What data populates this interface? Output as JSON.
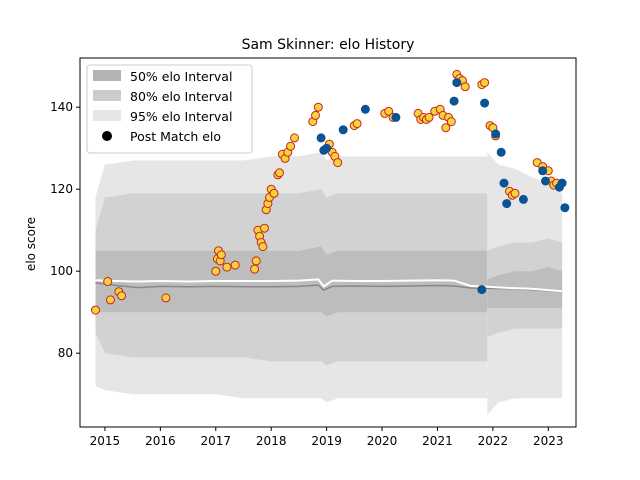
{
  "chart_data": {
    "type": "line",
    "title": "Sam Skinner: elo History",
    "xlabel": "",
    "ylabel": "elo score",
    "xlim": [
      2014.55,
      2023.5
    ],
    "ylim": [
      62,
      152
    ],
    "x_ticks": [
      2015,
      2016,
      2017,
      2018,
      2019,
      2020,
      2021,
      2022,
      2023
    ],
    "y_ticks": [
      80,
      100,
      120,
      140
    ],
    "grid": false,
    "legend_position": "top-left",
    "legend": [
      {
        "label": "50% elo Interval",
        "kind": "band",
        "color": "#b3b3b3"
      },
      {
        "label": "80% elo Interval",
        "kind": "band",
        "color": "#cccccc"
      },
      {
        "label": "95% elo Interval",
        "kind": "band",
        "color": "#e6e6e6"
      },
      {
        "label": "Post Match elo",
        "kind": "marker",
        "color": "#000000"
      }
    ],
    "colors": {
      "band50": "#bdbdbd",
      "band80": "#d2d2d2",
      "band95": "#e6e6e6",
      "median_line": "#888888",
      "mean_line": "#ffffff",
      "marker_fill_real": "#f5d33a",
      "marker_edge_real": "#cc2222",
      "marker_fill_sim": "#0b5394"
    },
    "bands": {
      "x": [
        2014.83,
        2015.0,
        2015.5,
        2016.0,
        2016.5,
        2017.0,
        2017.5,
        2018.0,
        2018.5,
        2018.9,
        2019.0,
        2019.2,
        2019.6,
        2020.0,
        2020.5,
        2021.0,
        2021.3,
        2021.6,
        2021.9
      ],
      "q50_low": [
        90,
        90,
        90,
        90,
        90,
        90,
        90,
        90,
        90,
        90,
        89,
        90,
        90,
        90,
        90,
        90,
        90,
        90,
        90
      ],
      "q50_high": [
        105,
        105,
        105,
        105,
        105,
        105,
        105,
        105,
        105,
        106,
        104,
        105,
        105,
        105,
        105,
        105,
        105,
        105,
        105
      ],
      "q80_low": [
        85,
        80,
        79,
        79,
        79,
        79,
        79,
        78,
        78,
        78,
        77,
        78,
        78,
        78,
        78,
        78,
        78,
        78,
        78
      ],
      "q80_high": [
        110,
        118,
        119,
        119,
        119,
        119,
        119,
        119,
        119,
        120,
        118,
        119,
        119,
        119,
        119,
        119,
        119,
        119,
        119
      ],
      "q95_low": [
        72,
        71,
        70,
        70,
        70,
        70,
        69,
        69,
        69,
        69,
        68,
        69,
        69,
        69,
        69,
        69,
        69,
        69,
        69
      ],
      "q95_high": [
        118,
        126,
        127,
        127,
        127,
        127,
        127,
        128,
        128,
        129,
        127,
        128,
        128,
        128,
        128,
        128,
        128,
        128,
        128
      ]
    },
    "future_bands": {
      "x": [
        2021.9,
        2022.1,
        2022.4,
        2022.7,
        2023.0,
        2023.25
      ],
      "q50_low": [
        91,
        91,
        91,
        91,
        91,
        91
      ],
      "q50_high": [
        98,
        99,
        100,
        100,
        101,
        100
      ],
      "q80_low": [
        84,
        85,
        86,
        86,
        86,
        86
      ],
      "q80_high": [
        105,
        106,
        107,
        107,
        108,
        107
      ],
      "q95_low": [
        65,
        68,
        69,
        69,
        69,
        69
      ],
      "q95_high": [
        129,
        126,
        125,
        123,
        121,
        119
      ]
    },
    "series": [
      {
        "role": "median",
        "x": [
          2014.83,
          2015.2,
          2015.6,
          2016.0,
          2016.5,
          2017.0,
          2017.5,
          2018.0,
          2018.5,
          2018.85,
          2018.95,
          2019.1,
          2019.5,
          2020.0,
          2020.5,
          2021.0,
          2021.3,
          2021.6,
          2021.9,
          2022.3,
          2022.7,
          2023.0,
          2023.25
        ],
        "values": [
          97.2,
          96.5,
          96.0,
          96.3,
          96.2,
          96.3,
          96.2,
          96.2,
          96.3,
          96.6,
          95.4,
          96.3,
          96.4,
          96.3,
          96.4,
          96.5,
          96.4,
          95.9,
          95.8,
          95.7,
          95.5,
          95.2,
          95.0
        ]
      },
      {
        "role": "mean",
        "x": [
          2014.83,
          2015.2,
          2015.6,
          2016.0,
          2016.5,
          2017.0,
          2017.5,
          2018.0,
          2018.5,
          2018.85,
          2018.95,
          2019.1,
          2019.5,
          2020.0,
          2020.5,
          2021.0,
          2021.3,
          2021.6,
          2021.9,
          2022.3,
          2022.7,
          2023.0,
          2023.25
        ],
        "values": [
          97.8,
          97.6,
          97.5,
          97.6,
          97.5,
          97.6,
          97.6,
          97.6,
          97.7,
          98.0,
          96.3,
          97.7,
          97.6,
          97.6,
          97.7,
          97.8,
          97.7,
          96.4,
          96.2,
          95.9,
          95.7,
          95.4,
          95.1
        ]
      }
    ],
    "points_real": {
      "x": [
        2014.83,
        2015.05,
        2015.1,
        2015.25,
        2015.3,
        2016.1,
        2017.0,
        2017.03,
        2017.05,
        2017.08,
        2017.1,
        2017.2,
        2017.35,
        2017.7,
        2017.73,
        2017.76,
        2017.79,
        2017.82,
        2017.85,
        2017.88,
        2017.91,
        2017.94,
        2017.97,
        2018.0,
        2018.05,
        2018.12,
        2018.15,
        2018.2,
        2018.25,
        2018.3,
        2018.35,
        2018.42,
        2018.75,
        2018.8,
        2018.85,
        2019.05,
        2019.1,
        2019.15,
        2019.2,
        2019.5,
        2019.55,
        2020.05,
        2020.12,
        2020.2,
        2020.65,
        2020.7,
        2020.75,
        2020.8,
        2020.85,
        2020.95,
        2021.05,
        2021.1,
        2021.15,
        2021.2,
        2021.25,
        2021.35,
        2021.4,
        2021.45,
        2021.5,
        2021.8,
        2021.85,
        2021.95,
        2022.0,
        2022.05,
        2022.3,
        2022.35,
        2022.4,
        2022.8,
        2022.9,
        2023.0,
        2023.05,
        2023.1,
        2023.15
      ],
      "values": [
        90.5,
        97.5,
        93.0,
        95.0,
        94.0,
        93.5,
        100.0,
        103.0,
        105.0,
        102.5,
        104.0,
        101.0,
        101.5,
        100.5,
        102.5,
        110.0,
        108.5,
        107.0,
        106.0,
        110.5,
        115.0,
        116.5,
        118.0,
        120.0,
        119.0,
        123.5,
        124.0,
        128.5,
        127.5,
        129.0,
        130.5,
        132.5,
        136.5,
        138.0,
        140.0,
        131.0,
        129.0,
        128.0,
        126.5,
        135.5,
        136.0,
        138.5,
        139.0,
        137.5,
        138.5,
        137.0,
        137.5,
        137.0,
        137.5,
        139.0,
        139.5,
        138.0,
        135.0,
        137.5,
        136.5,
        148.0,
        147.0,
        146.5,
        145.0,
        145.5,
        146.0,
        135.5,
        135.0,
        133.0,
        119.5,
        118.5,
        119.0,
        126.5,
        125.5,
        124.5,
        122.0,
        121.0,
        121.5
      ]
    },
    "points_sim": {
      "x": [
        2018.9,
        2018.95,
        2019.0,
        2019.3,
        2019.7,
        2020.25,
        2021.3,
        2021.35,
        2021.85,
        2022.05,
        2022.15,
        2022.2,
        2022.25,
        2022.55,
        2022.9,
        2022.95,
        2023.2,
        2023.25,
        2023.3,
        2021.8
      ],
      "values": [
        132.5,
        129.5,
        130.0,
        134.5,
        139.5,
        137.5,
        141.5,
        146.0,
        141.0,
        133.5,
        129.0,
        121.5,
        116.5,
        117.5,
        124.5,
        122.0,
        120.5,
        121.5,
        115.5,
        95.5
      ]
    }
  }
}
